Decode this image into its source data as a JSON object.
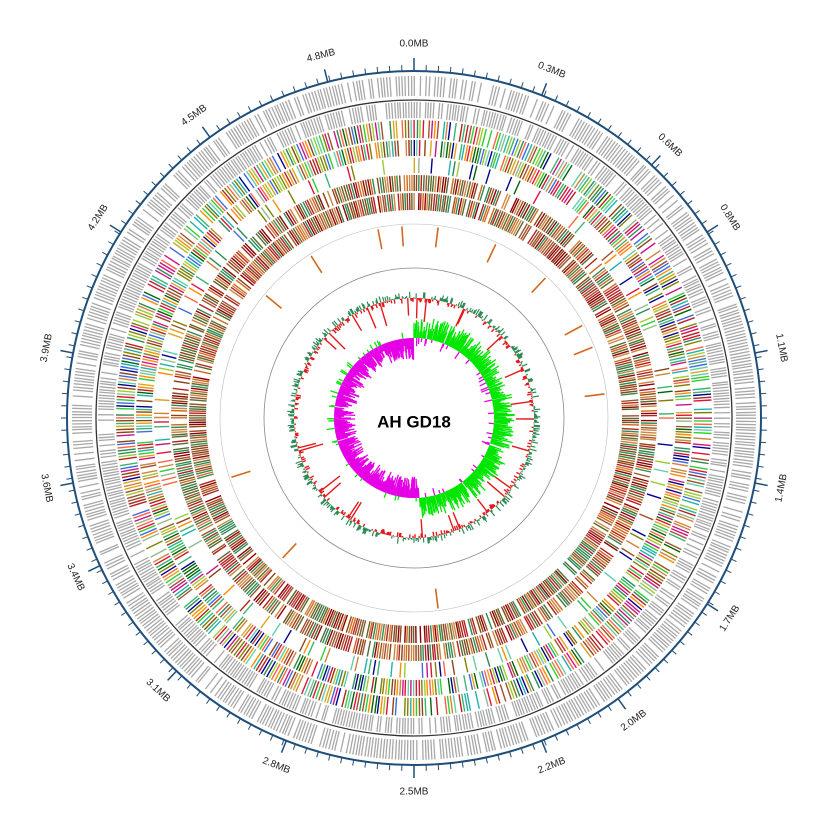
{
  "title": "AH GD18",
  "genome_size_mb": 5.0,
  "scale": {
    "ticks": [
      {
        "mb": 0.0,
        "label": "0.0MB"
      },
      {
        "mb": 0.3,
        "label": "0.3MB"
      },
      {
        "mb": 0.6,
        "label": "0.6MB"
      },
      {
        "mb": 0.8,
        "label": "0.8MB"
      },
      {
        "mb": 1.1,
        "label": "1.1MB"
      },
      {
        "mb": 1.4,
        "label": "1.4MB"
      },
      {
        "mb": 1.7,
        "label": "1.7MB"
      },
      {
        "mb": 2.0,
        "label": "2.0MB"
      },
      {
        "mb": 2.2,
        "label": "2.2MB"
      },
      {
        "mb": 2.5,
        "label": "2.5MB"
      },
      {
        "mb": 2.8,
        "label": "2.8MB"
      },
      {
        "mb": 3.1,
        "label": "3.1MB"
      },
      {
        "mb": 3.4,
        "label": "3.4MB"
      },
      {
        "mb": 3.6,
        "label": "3.6MB"
      },
      {
        "mb": 3.9,
        "label": "3.9MB"
      },
      {
        "mb": 4.2,
        "label": "4.2MB"
      },
      {
        "mb": 4.5,
        "label": "4.5MB"
      },
      {
        "mb": 4.8,
        "label": "4.8MB"
      }
    ],
    "axis_color": "#1f4e79"
  },
  "colors": {
    "gray_features": "#a8a8a8",
    "cog_palette": [
      "#2e8b57",
      "#32cd32",
      "#8b4513",
      "#b22222",
      "#ff6347",
      "#20b2aa",
      "#9acd32",
      "#00008b",
      "#daa520",
      "#cd853f",
      "#a0522d",
      "#3cb371",
      "#ff8c00",
      "#4169e1",
      "#c71585",
      "#808000",
      "#dc143c",
      "#66cdaa",
      "#8fbc8f",
      "#006400"
    ],
    "rrna_marker": "#d2691e",
    "gc_content_positive": "#2e8b57",
    "gc_content_negative": "#e31a1c",
    "gc_skew_positive": "#00e600",
    "gc_skew_negative": "#e600e6",
    "ring_outline": "#888888"
  }
}
